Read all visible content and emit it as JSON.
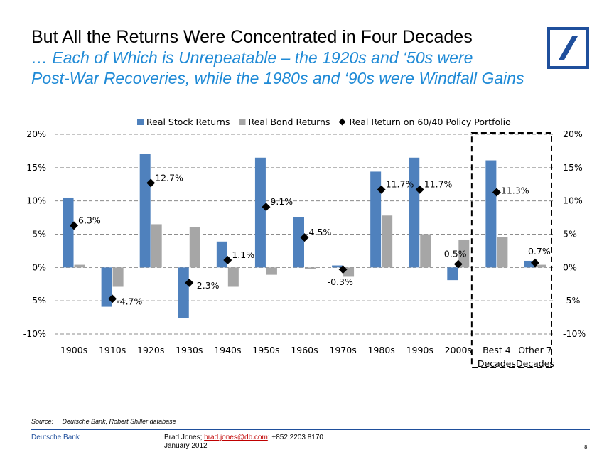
{
  "header": {
    "title": "But All the Returns Were Concentrated in Four Decades",
    "subtitle_line1": "… Each of Which is Unrepeatable – the 1920s and ‘50s were",
    "subtitle_line2": "Post-War Recoveries, while the 1980s and ‘90s were Windfall Gains"
  },
  "logo": {
    "icon": "deutsche-bank-slash-logo",
    "color": "#1f4f9c"
  },
  "chart_data": {
    "type": "bar",
    "categories": [
      "1900s",
      "1910s",
      "1920s",
      "1930s",
      "1940s",
      "1950s",
      "1960s",
      "1970s",
      "1980s",
      "1990s",
      "2000s",
      "Best 4 Decades",
      "Other 7 Decades"
    ],
    "series": [
      {
        "name": "Real Stock Returns",
        "kind": "bar",
        "color": "#4f81bd",
        "values": [
          10.5,
          -5.9,
          17.1,
          -7.6,
          3.9,
          16.5,
          7.6,
          0.3,
          14.4,
          16.5,
          -1.9,
          16.1,
          1.0
        ]
      },
      {
        "name": "Real Bond Returns",
        "kind": "bar",
        "color": "#a6a6a6",
        "values": [
          0.4,
          -2.9,
          6.5,
          6.1,
          -2.9,
          -1.1,
          -0.2,
          -1.4,
          7.8,
          5.0,
          4.2,
          4.6,
          0.4
        ]
      },
      {
        "name": "Real Return on 60/40 Policy Portfolio",
        "kind": "marker",
        "marker": "diamond",
        "color": "#000000",
        "values": [
          6.3,
          -4.7,
          12.7,
          -2.3,
          1.1,
          9.1,
          4.5,
          -0.3,
          11.7,
          11.7,
          0.5,
          11.3,
          0.7
        ],
        "labels": [
          "6.3%",
          "-4.7%",
          "12.7%",
          "-2.3%",
          "1.1%",
          "9.1%",
          "4.5%",
          "-0.3%",
          "11.7%",
          "11.7%",
          "0.5%",
          "11.3%",
          "0.7%"
        ]
      }
    ],
    "x_tick_labels": [
      [
        "1900s"
      ],
      [
        "1910s"
      ],
      [
        "1920s"
      ],
      [
        "1930s"
      ],
      [
        "1940s"
      ],
      [
        "1950s"
      ],
      [
        "1960s"
      ],
      [
        "1970s"
      ],
      [
        "1980s"
      ],
      [
        "1990s"
      ],
      [
        "2000s"
      ],
      [
        "Best 4",
        "Decades"
      ],
      [
        "Other 7",
        "Decades"
      ]
    ],
    "ylim": [
      -10,
      20
    ],
    "y_ticks": [
      -10,
      -5,
      0,
      5,
      10,
      15,
      20
    ],
    "y_tick_labels": [
      "-10%",
      "-5%",
      "0%",
      "5%",
      "10%",
      "15%",
      "20%"
    ],
    "y_axis_sides": [
      "left",
      "right"
    ],
    "grid": true,
    "grid_style": "dashed",
    "legend_position": "top",
    "highlight_box": [
      "Best 4 Decades",
      "Other 7 Decades"
    ],
    "xlabel": "",
    "ylabel": ""
  },
  "footer": {
    "source_label": "Source:",
    "source_text": "Deutsche Bank, Robert Shiller database",
    "brand": "Deutsche Bank",
    "author_prefix": "Brad Jones; ",
    "author_email": "brad.jones@db.com",
    "author_suffix": "; +852 2203 8170",
    "date": "January 2012",
    "page_number": "8"
  }
}
